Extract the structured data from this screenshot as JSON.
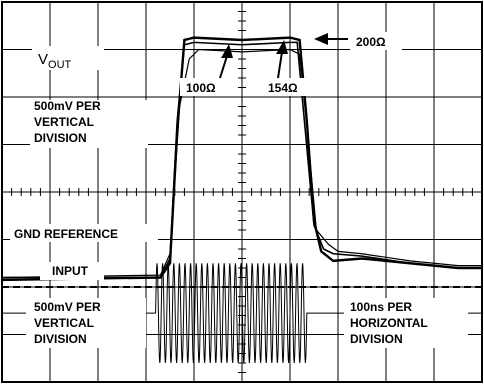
{
  "chart_data": {
    "type": "line",
    "title": "",
    "xlabel": "",
    "ylabel": "",
    "x_divisions": 10,
    "y_divisions": 8,
    "grid": true,
    "colors": {
      "trace": "#000000",
      "grid": "#000000",
      "background": "#ffffff"
    },
    "annotations": {
      "vout_label": "V",
      "vout_sub": "OUT",
      "vout_scale_1": "500mV PER",
      "vout_scale_2": "VERTICAL",
      "vout_scale_3": "DIVISION",
      "gnd_label": "GND REFERENCE",
      "input_label": "INPUT",
      "in_scale_1": "500mV PER",
      "in_scale_2": "VERTICAL",
      "in_scale_3": "DIVISION",
      "time_scale_1": "100ns PER",
      "time_scale_2": "HORIZONTAL",
      "time_scale_3": "DIVISION",
      "r100": "100Ω",
      "r154": "154Ω",
      "r200": "200Ω"
    },
    "series": [
      {
        "name": "200Ω",
        "unit_x": "div",
        "unit_y": "div",
        "x": [
          0,
          3.3,
          3.5,
          3.65,
          3.8,
          4.0,
          5.0,
          6.0,
          6.2,
          6.35,
          6.5,
          6.65,
          6.9,
          7.5,
          8.5,
          9.5,
          10
        ],
        "y": [
          2.15,
          2.2,
          2.5,
          5.3,
          7.2,
          7.25,
          7.2,
          7.25,
          7.2,
          5.5,
          3.4,
          2.75,
          2.55,
          2.6,
          2.5,
          2.4,
          2.4
        ]
      },
      {
        "name": "154Ω",
        "unit_x": "div",
        "unit_y": "div",
        "x": [
          0,
          3.3,
          3.5,
          3.65,
          3.8,
          4.0,
          5.0,
          6.0,
          6.15,
          6.3,
          6.5,
          6.7,
          6.9,
          7.5,
          8.5,
          9.5,
          10
        ],
        "y": [
          2.2,
          2.2,
          2.6,
          5.5,
          7.1,
          7.15,
          7.1,
          7.15,
          7.15,
          5.5,
          3.3,
          2.8,
          2.7,
          2.65,
          2.5,
          2.4,
          2.4
        ]
      },
      {
        "name": "100Ω",
        "unit_x": "div",
        "unit_y": "div",
        "x": [
          0,
          3.3,
          3.5,
          3.7,
          3.9,
          4.1,
          5.0,
          6.0,
          6.2,
          6.35,
          6.55,
          6.8,
          7.0,
          7.5,
          8.5,
          9.5,
          10
        ],
        "y": [
          2.2,
          2.25,
          2.7,
          5.8,
          6.8,
          7.0,
          6.95,
          7.0,
          6.9,
          5.4,
          3.2,
          2.9,
          2.75,
          2.7,
          2.55,
          2.45,
          2.45
        ]
      },
      {
        "name": "input",
        "unit_x": "div",
        "unit_y": "div",
        "y_level": 1.45,
        "gnd_y": 2.0,
        "burst_start": 3.2,
        "burst_end": 6.35,
        "amplitude": 1.05,
        "cycles": 27
      }
    ]
  }
}
